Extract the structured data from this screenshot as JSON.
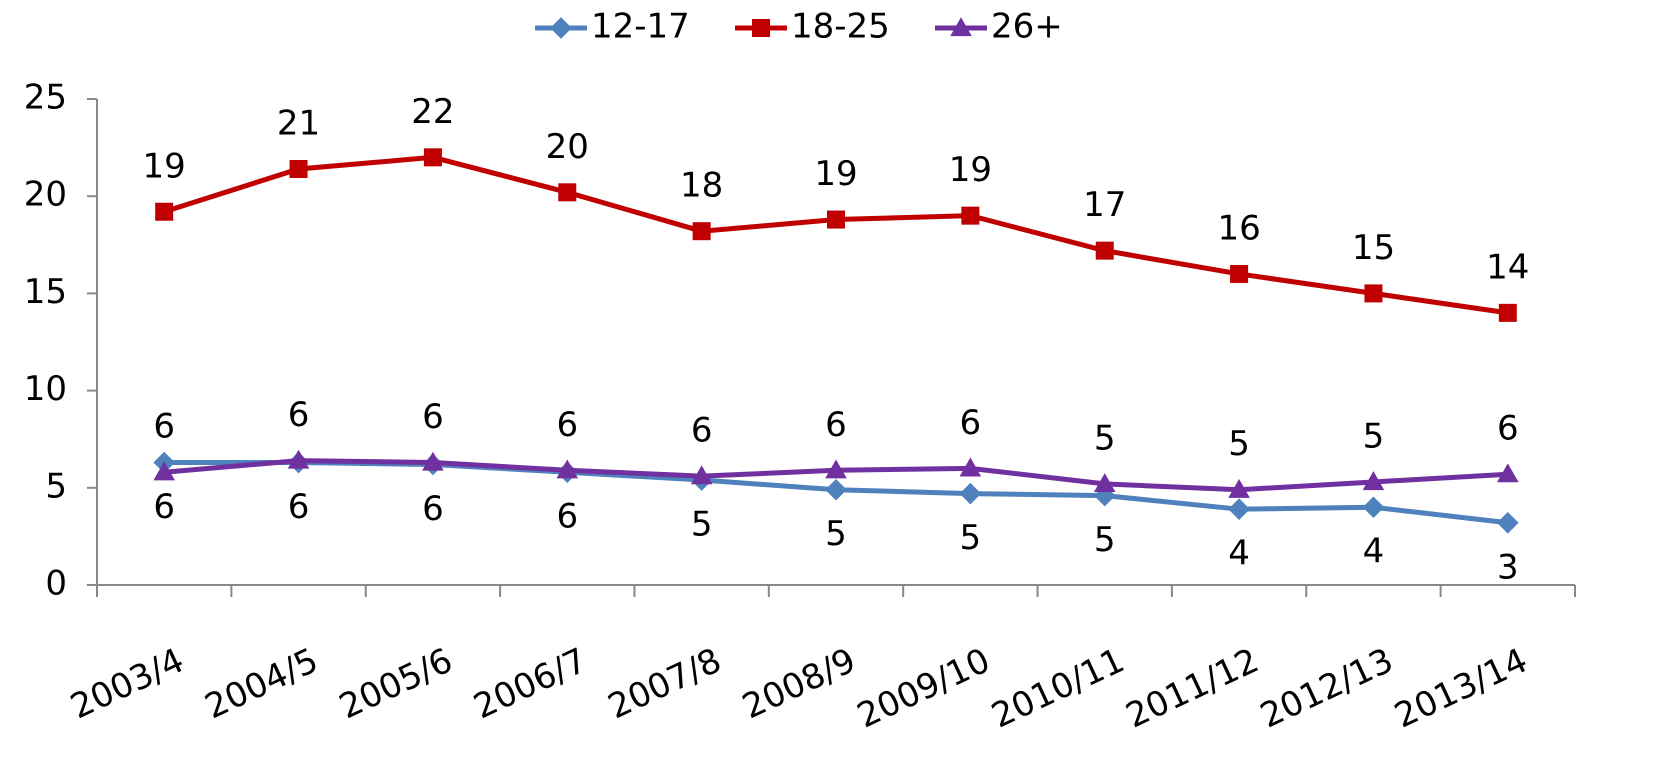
{
  "chart_data": {
    "type": "line",
    "categories": [
      "2003/4",
      "2004/5",
      "2005/6",
      "2006/7",
      "2007/8",
      "2008/9",
      "2009/10",
      "2010/11",
      "2011/12",
      "2012/13",
      "2013/14"
    ],
    "series": [
      {
        "name": "12-17",
        "color": "#4f81bd",
        "marker": "diamond",
        "values": [
          6.3,
          6.3,
          6.2,
          5.8,
          5.4,
          4.9,
          4.7,
          4.6,
          3.9,
          4.0,
          3.2
        ],
        "value_labels": [
          "6",
          "6",
          "6",
          "6",
          "5",
          "5",
          "5",
          "5",
          "4",
          "4",
          "3"
        ]
      },
      {
        "name": "18-25",
        "color": "#c00000",
        "marker": "square",
        "values": [
          19.2,
          21.4,
          22.0,
          20.2,
          18.2,
          18.8,
          19.0,
          17.2,
          16.0,
          15.0,
          14.0
        ],
        "value_labels": [
          "19",
          "21",
          "22",
          "20",
          "18",
          "19",
          "19",
          "17",
          "16",
          "15",
          "14"
        ]
      },
      {
        "name": "26+",
        "color": "#7030a0",
        "marker": "triangle",
        "values": [
          5.8,
          6.4,
          6.3,
          5.9,
          5.6,
          5.9,
          6.0,
          5.2,
          4.9,
          5.3,
          5.7
        ],
        "value_labels": [
          "6",
          "6",
          "6",
          "6",
          "6",
          "6",
          "6",
          "5",
          "5",
          "5",
          "6"
        ]
      }
    ],
    "ylim": [
      0,
      25
    ],
    "yticks": [
      0,
      5,
      10,
      15,
      20,
      25
    ],
    "grid": false,
    "legend": "top"
  }
}
